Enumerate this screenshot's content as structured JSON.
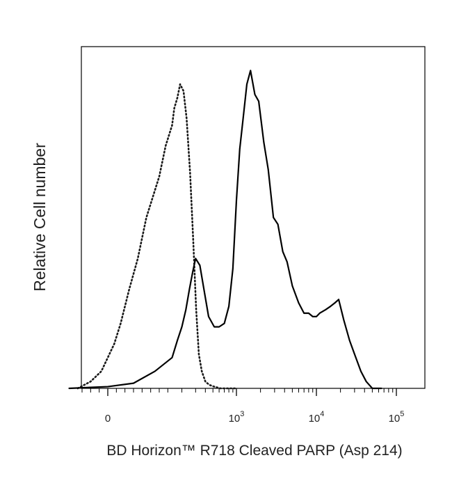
{
  "chart_data": {
    "type": "line",
    "title": "",
    "xlabel": "BD Horizon™ R718 Cleaved PARP (Asp 214)",
    "ylabel": "Relative Cell number",
    "x_scale": "biexponential",
    "xlim": [
      -200,
      200000
    ],
    "ylim": [
      0,
      1.0
    ],
    "grid": false,
    "legend": "none",
    "x_ticks": [
      {
        "value": 0,
        "base": "0",
        "exp": ""
      },
      {
        "value": 1000,
        "base": "10",
        "exp": "3"
      },
      {
        "value": 10000,
        "base": "10",
        "exp": "4"
      },
      {
        "value": 100000,
        "base": "10",
        "exp": "5"
      }
    ],
    "series": [
      {
        "style": "dotted",
        "color": "#1a1a1a",
        "x": [
          -70,
          -40,
          -15,
          0,
          15,
          30,
          50,
          70,
          90,
          105,
          120,
          135,
          150,
          160,
          175,
          190,
          210,
          230,
          255,
          280,
          305,
          330,
          360,
          400,
          450,
          520,
          620,
          750,
          1000
        ],
        "y": [
          0.0,
          0.02,
          0.05,
          0.09,
          0.13,
          0.19,
          0.29,
          0.38,
          0.5,
          0.56,
          0.62,
          0.71,
          0.77,
          0.82,
          0.85,
          0.89,
          0.87,
          0.79,
          0.63,
          0.43,
          0.23,
          0.1,
          0.05,
          0.02,
          0.01,
          0.005,
          0.0,
          0.0,
          0.0
        ]
      },
      {
        "style": "solid",
        "color": "#000000",
        "x": [
          -90,
          0,
          60,
          110,
          150,
          175,
          200,
          225,
          250,
          275,
          300,
          340,
          390,
          440,
          520,
          600,
          700,
          800,
          900,
          1000,
          1100,
          1200,
          1350,
          1500,
          1700,
          1900,
          2200,
          2500,
          2900,
          3300,
          3800,
          4300,
          5000,
          6000,
          7000,
          8000,
          9000,
          10000,
          11000,
          13000,
          15000,
          17000,
          19000,
          22000,
          26000,
          30000,
          36000,
          42000,
          50000,
          65000
        ],
        "y": [
          0.0,
          0.005,
          0.015,
          0.05,
          0.09,
          0.14,
          0.18,
          0.23,
          0.29,
          0.34,
          0.38,
          0.36,
          0.28,
          0.21,
          0.18,
          0.18,
          0.19,
          0.24,
          0.35,
          0.55,
          0.7,
          0.78,
          0.89,
          0.93,
          0.86,
          0.84,
          0.72,
          0.64,
          0.5,
          0.48,
          0.4,
          0.37,
          0.3,
          0.25,
          0.22,
          0.22,
          0.21,
          0.21,
          0.22,
          0.23,
          0.24,
          0.25,
          0.26,
          0.2,
          0.14,
          0.1,
          0.05,
          0.02,
          0.0,
          0.0
        ]
      }
    ]
  }
}
